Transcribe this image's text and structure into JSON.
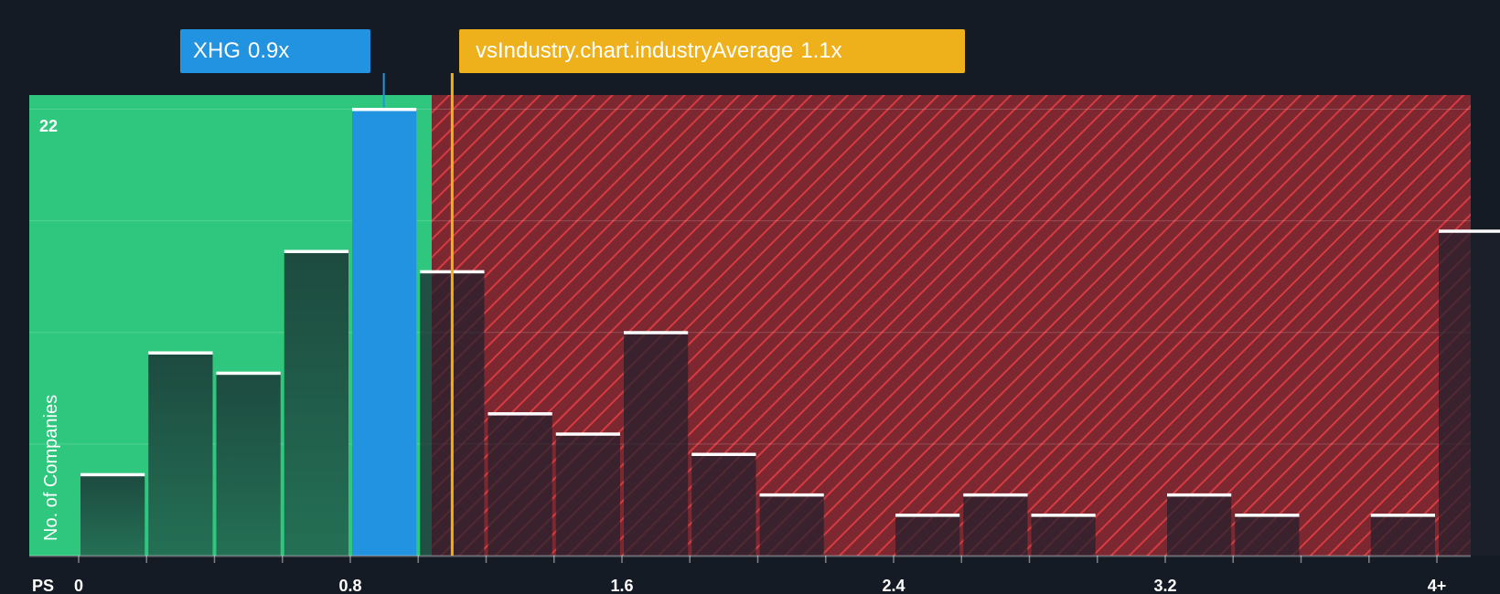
{
  "chart_data": {
    "type": "bar",
    "title": "",
    "xlabel": "PS",
    "ylabel": "No. of Companies",
    "x_tick_labels": [
      "0",
      "0.8",
      "1.6",
      "2.4",
      "3.2",
      "4+"
    ],
    "x_tick_values": [
      0,
      0.8,
      1.6,
      2.4,
      3.2,
      4
    ],
    "y_top_label": "22",
    "ylim": [
      0,
      22.7
    ],
    "bins": [
      {
        "start": 0.0,
        "end": 0.2,
        "value": 4
      },
      {
        "start": 0.2,
        "end": 0.4,
        "value": 10
      },
      {
        "start": 0.4,
        "end": 0.6,
        "value": 9
      },
      {
        "start": 0.6,
        "end": 0.8,
        "value": 15
      },
      {
        "start": 0.8,
        "end": 1.0,
        "value": 22,
        "highlight": true
      },
      {
        "start": 1.0,
        "end": 1.2,
        "value": 14
      },
      {
        "start": 1.2,
        "end": 1.4,
        "value": 7
      },
      {
        "start": 1.4,
        "end": 1.6,
        "value": 6
      },
      {
        "start": 1.6,
        "end": 1.8,
        "value": 11
      },
      {
        "start": 1.8,
        "end": 2.0,
        "value": 5
      },
      {
        "start": 2.0,
        "end": 2.2,
        "value": 3
      },
      {
        "start": 2.2,
        "end": 2.4,
        "value": 0
      },
      {
        "start": 2.4,
        "end": 2.6,
        "value": 2
      },
      {
        "start": 2.6,
        "end": 2.8,
        "value": 3
      },
      {
        "start": 2.8,
        "end": 3.0,
        "value": 2
      },
      {
        "start": 3.0,
        "end": 3.2,
        "value": 0
      },
      {
        "start": 3.2,
        "end": 3.4,
        "value": 3
      },
      {
        "start": 3.4,
        "end": 3.6,
        "value": 2
      },
      {
        "start": 3.6,
        "end": 3.8,
        "value": 0
      },
      {
        "start": 3.8,
        "end": 4.0,
        "value": 2
      },
      {
        "start": 4.0,
        "end": 4.2,
        "value": 16
      }
    ],
    "fair_zone_end": 1.04,
    "company": {
      "label": "XHG",
      "value": 0.9,
      "display": "0.9x"
    },
    "industry_average": {
      "label": "vsIndustry.chart.industryAverage",
      "value": 1.1,
      "display": "1.1x"
    },
    "colors": {
      "background": "#151b24",
      "fair_zone": "#2ec77d",
      "over_zone": "#8c2a32",
      "hatch": "#d63b40",
      "bar_in_fair": "#1e4a3e",
      "bar_in_over": "#2a2e38",
      "highlight_bar": "#2193e0",
      "bar_cap": "#ffffff",
      "company_callout": "#2193e0",
      "industry_line": "#eeb11c"
    }
  }
}
